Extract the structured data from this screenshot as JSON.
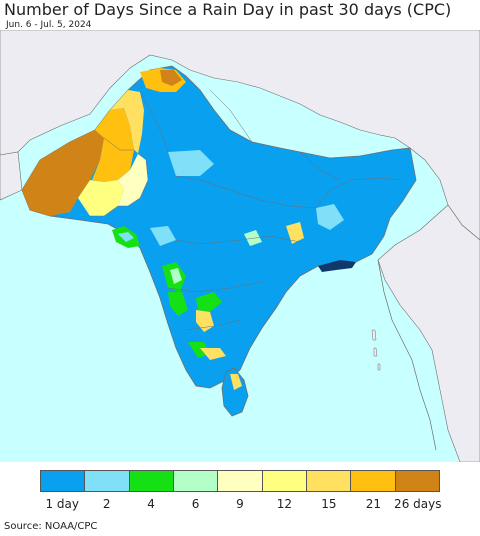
{
  "title": "Number of Days Since a Rain Day in past 30 days (CPC)",
  "subtitle": "Jun. 6 - Jul. 5, 2024",
  "source": "Source: NOAA/CPC",
  "colors": {
    "ocean": "#c8ffff",
    "outside_land": "#ececf2",
    "day1": "#0aa0f0",
    "day2": "#7fe0f8",
    "day4": "#14e014",
    "day6": "#b4ffc8",
    "day9": "#ffffc0",
    "day12": "#ffff80",
    "day15": "#ffe060",
    "day21": "#ffc010",
    "day26": "#d08418",
    "border": "#6e6e6e"
  },
  "legend": {
    "colors": [
      "#0aa0f0",
      "#7fe0f8",
      "#14e014",
      "#b4ffc8",
      "#ffffc0",
      "#ffff80",
      "#ffe060",
      "#ffc010",
      "#d08418"
    ],
    "labels": [
      "1 day",
      "2",
      "4",
      "6",
      "9",
      "12",
      "15",
      "21",
      "26 days"
    ]
  }
}
